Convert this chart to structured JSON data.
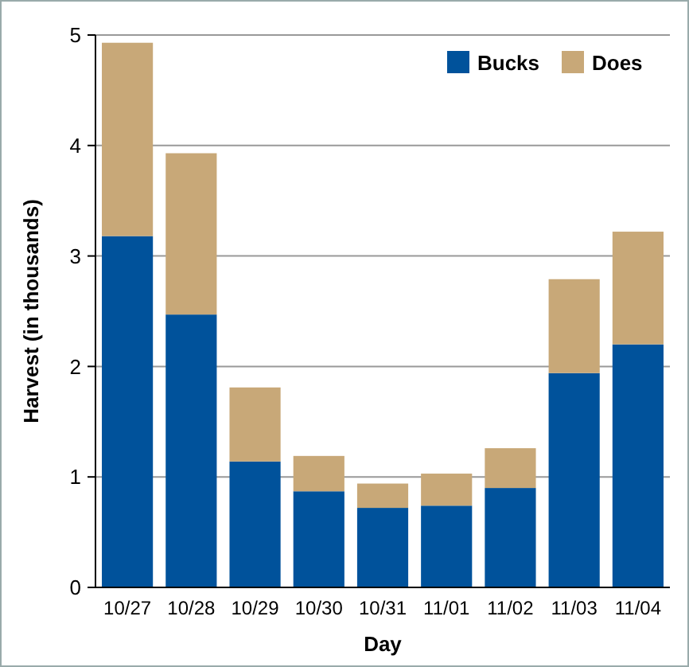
{
  "chart_data": {
    "type": "bar",
    "stacked": true,
    "xlabel": "Day",
    "ylabel": "Harvest (in thousands)",
    "categories": [
      "10/27",
      "10/28",
      "10/29",
      "10/30",
      "10/31",
      "11/01",
      "11/02",
      "11/03",
      "11/04"
    ],
    "series": [
      {
        "name": "Bucks",
        "color": "#00529b",
        "values": [
          3.18,
          2.47,
          1.14,
          0.87,
          0.72,
          0.74,
          0.9,
          1.94,
          2.2
        ]
      },
      {
        "name": "Does",
        "color": "#c8a878",
        "values": [
          1.75,
          1.46,
          0.67,
          0.32,
          0.22,
          0.29,
          0.36,
          0.85,
          1.02
        ]
      }
    ],
    "ylim": [
      0,
      5
    ],
    "yticks": [
      0,
      1,
      2,
      3,
      4,
      5
    ],
    "grid": "y",
    "legend": "top right"
  }
}
